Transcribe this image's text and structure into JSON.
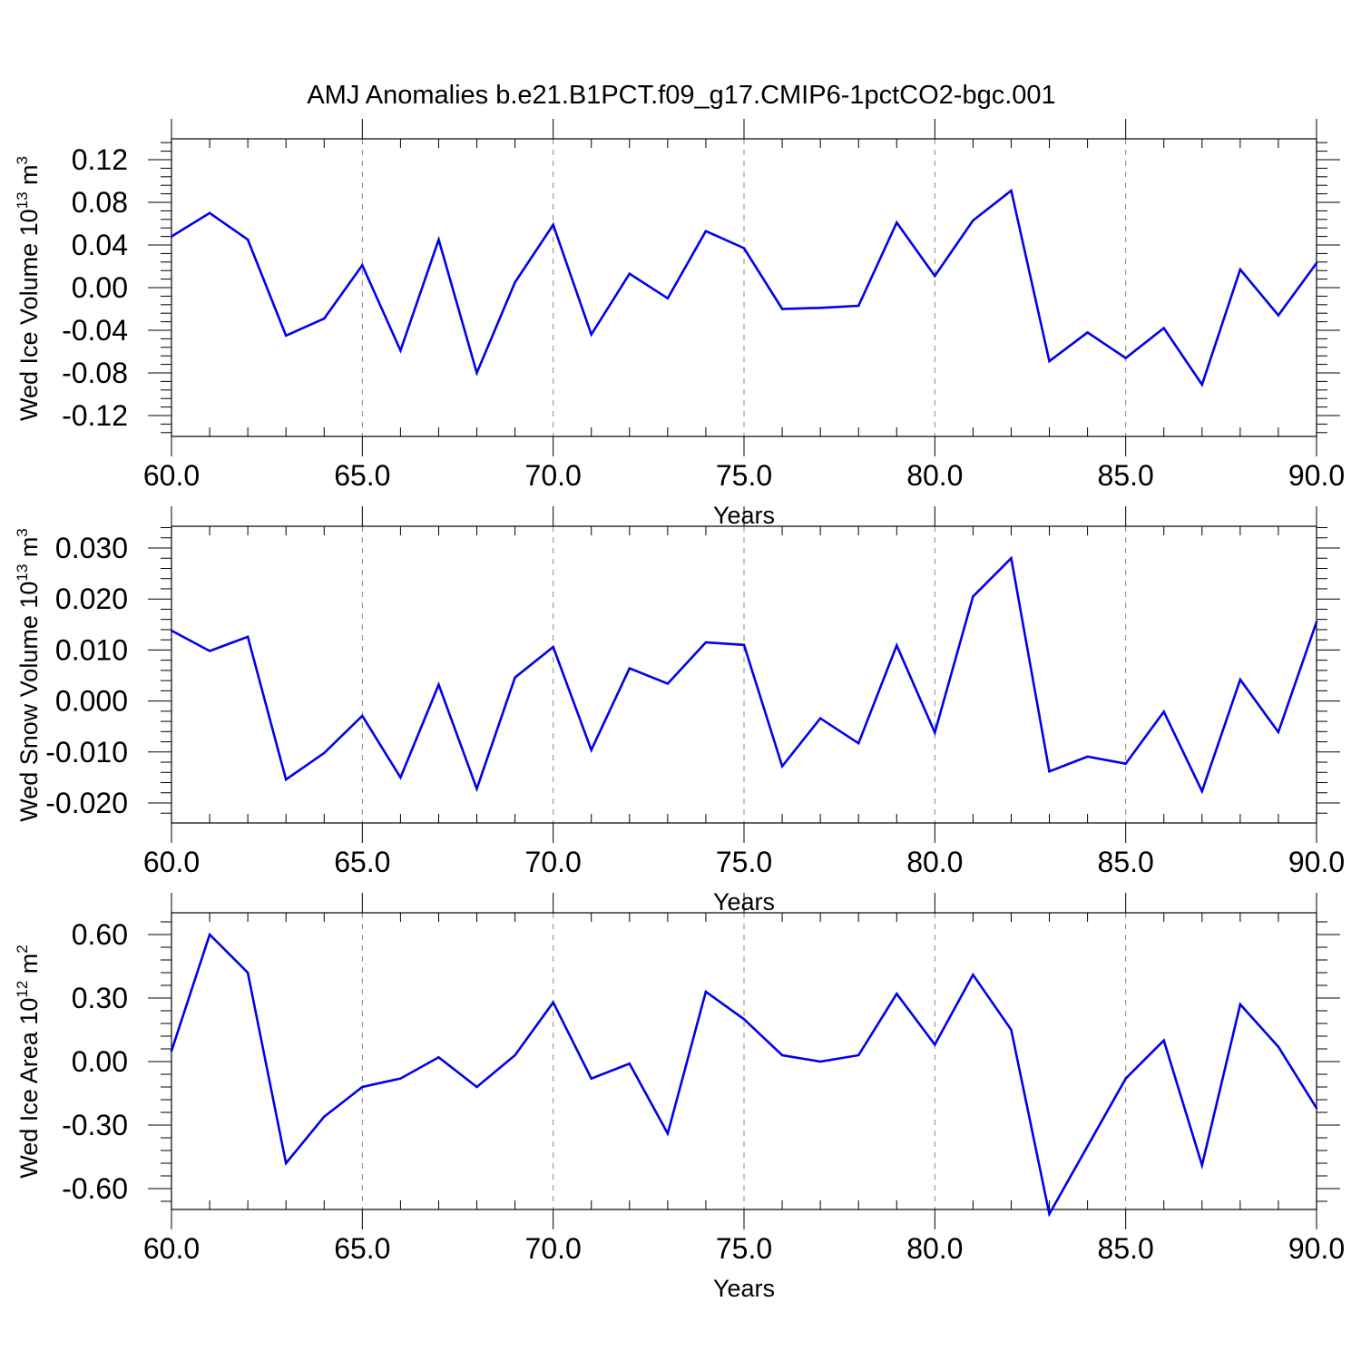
{
  "title": "AMJ Anomalies b.e21.B1PCT.f09_g17.CMIP6-1pctCO2-bgc.001",
  "colors": {
    "series_line": "#0000ee",
    "axes": "#000000",
    "grid": "#888888"
  },
  "chart_data": [
    {
      "type": "line",
      "xlabel": "Years",
      "ylabel": {
        "prefix": "Wed Ice Volume 10",
        "exponent": "13",
        "unit": " m",
        "unit_exponent": "3"
      },
      "xlim": [
        60,
        90
      ],
      "ylim": [
        -0.12,
        0.12
      ],
      "x_ticks": [
        "60.0",
        "65.0",
        "70.0",
        "75.0",
        "80.0",
        "85.0",
        "90.0"
      ],
      "y_ticks": [
        "0.12",
        "0.08",
        "0.04",
        "0.00",
        "-0.04",
        "-0.08",
        "-0.12"
      ],
      "grid": "vertical dashed at major x ticks",
      "x": [
        60,
        61,
        62,
        63,
        64,
        65,
        66,
        67,
        68,
        69,
        70,
        71,
        72,
        73,
        74,
        75,
        76,
        77,
        78,
        79,
        80,
        81,
        82,
        83,
        84,
        85,
        86,
        87,
        88,
        89,
        90
      ],
      "values": [
        0.048,
        0.07,
        0.045,
        -0.045,
        -0.029,
        0.021,
        -0.059,
        0.045,
        -0.08,
        0.005,
        0.059,
        -0.044,
        0.013,
        -0.01,
        0.053,
        0.037,
        -0.02,
        -0.019,
        -0.017,
        0.061,
        0.011,
        0.063,
        0.091,
        -0.069,
        -0.042,
        -0.066,
        -0.038,
        -0.091,
        0.017,
        -0.026,
        0.023
      ]
    },
    {
      "type": "line",
      "xlabel": "Years",
      "ylabel": {
        "prefix": "Wed Snow Volume 10",
        "exponent": "13",
        "unit": " m",
        "unit_exponent": "3"
      },
      "xlim": [
        60,
        90
      ],
      "ylim": [
        -0.02,
        0.03
      ],
      "x_ticks": [
        "60.0",
        "65.0",
        "70.0",
        "75.0",
        "80.0",
        "85.0",
        "90.0"
      ],
      "y_ticks": [
        "0.030",
        "0.020",
        "0.010",
        "0.000",
        "-0.010",
        "-0.020"
      ],
      "grid": "vertical dashed at major x ticks",
      "x": [
        60,
        61,
        62,
        63,
        64,
        65,
        66,
        67,
        68,
        69,
        70,
        71,
        72,
        73,
        74,
        75,
        76,
        77,
        78,
        79,
        80,
        81,
        82,
        83,
        84,
        85,
        86,
        87,
        88,
        89,
        90
      ],
      "values": [
        0.0138,
        0.0098,
        0.0126,
        -0.0154,
        -0.0102,
        -0.0029,
        -0.015,
        0.0032,
        -0.0172,
        0.0046,
        0.0106,
        -0.0096,
        0.0064,
        0.0034,
        0.0115,
        0.011,
        -0.0128,
        -0.0034,
        -0.0083,
        0.0109,
        -0.0062,
        0.0205,
        0.028,
        -0.0138,
        -0.0109,
        -0.0123,
        -0.0021,
        -0.0177,
        0.0042,
        -0.0061,
        0.0155
      ]
    },
    {
      "type": "line",
      "xlabel": "Years",
      "ylabel": {
        "prefix": "Wed Ice Area 10",
        "exponent": "12",
        "unit": " m",
        "unit_exponent": "2"
      },
      "xlim": [
        60,
        90
      ],
      "ylim": [
        -0.8,
        0.6
      ],
      "x_ticks": [
        "60.0",
        "65.0",
        "70.0",
        "75.0",
        "80.0",
        "85.0",
        "90.0"
      ],
      "y_ticks": [
        "0.60",
        "0.30",
        "0.00",
        "-0.30",
        "-0.60"
      ],
      "grid": "vertical dashed at major x ticks",
      "x": [
        60,
        61,
        62,
        63,
        64,
        65,
        66,
        67,
        68,
        69,
        70,
        71,
        72,
        73,
        74,
        75,
        76,
        77,
        78,
        79,
        80,
        81,
        82,
        83,
        84,
        85,
        86,
        87,
        88,
        89,
        90
      ],
      "values": [
        0.05,
        0.6,
        0.42,
        -0.48,
        -0.26,
        -0.12,
        -0.08,
        0.02,
        -0.12,
        0.03,
        0.28,
        -0.08,
        -0.01,
        -0.34,
        0.33,
        0.2,
        0.03,
        0.0,
        0.03,
        0.32,
        0.08,
        0.41,
        0.15,
        -0.72,
        -0.4,
        -0.08,
        0.1,
        -0.49,
        0.27,
        0.07,
        -0.22
      ]
    }
  ]
}
